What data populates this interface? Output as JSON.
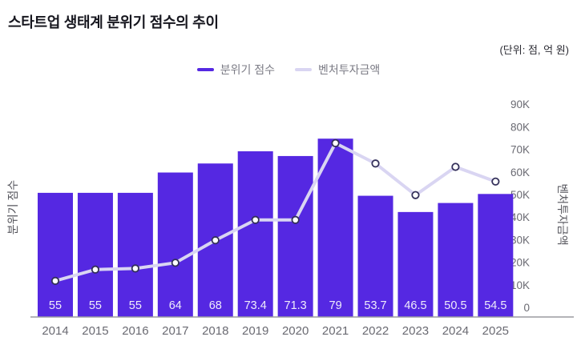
{
  "title": "스타트업 생태계 분위기 점수의 추이",
  "unit_note": "(단위: 점, 억 원)",
  "legend": [
    {
      "label": "분위기 점수",
      "swatch_color": "#5528e2"
    },
    {
      "label": "벤처투자금액",
      "swatch_color": "#d9d5f2"
    }
  ],
  "colors": {
    "bar": "#5528e2",
    "line": "#d9d5f2",
    "marker_fill": "#ffffff",
    "marker_stroke": "#34305a",
    "axis_line": "#9b9ba1",
    "tick_label": "#6a6a72",
    "category_label": "#6a6a72",
    "bar_label": "#efecfb",
    "axis_title": "#55555c",
    "title_text": "#17171f",
    "unit_text": "#2b2b33",
    "legend_text": "#7c7c86"
  },
  "chart_data": {
    "type": "bar",
    "subtype": "bar-line-combo",
    "title": "스타트업 생태계 분위기 점수의 추이",
    "unit_note": "(단위: 점, 억 원)",
    "categories": [
      "2014",
      "2015",
      "2016",
      "2017",
      "2018",
      "2019",
      "2020",
      "2021",
      "2022",
      "2023",
      "2024",
      "2025"
    ],
    "series": [
      {
        "name": "분위기 점수",
        "render": "bar",
        "axis": "left",
        "unit": "점",
        "values": [
          55,
          55,
          55,
          64,
          68,
          73.4,
          71.3,
          79,
          53.7,
          46.5,
          50.5,
          54.5
        ],
        "labels": [
          "55",
          "55",
          "55",
          "64",
          "68",
          "73.4",
          "71.3",
          "79",
          "53.7",
          "46.5",
          "50.5",
          "54.5"
        ]
      },
      {
        "name": "벤처투자금액",
        "render": "line",
        "axis": "right",
        "unit": "억 원",
        "values_estimated_from_pixels": true,
        "values": [
          16000,
          21000,
          21500,
          24000,
          34000,
          43000,
          43000,
          77000,
          68000,
          54000,
          66500,
          60000
        ]
      }
    ],
    "left_axis_label": "분위기 점수",
    "right_axis_label": "벤처투자금액",
    "right_axis_ticks": [
      "0",
      "10K",
      "20K",
      "30K",
      "40K",
      "50K",
      "60K",
      "70K",
      "80K",
      "90K"
    ],
    "right_axis_range": [
      0,
      90000
    ],
    "left_axis_range": [
      0,
      90
    ],
    "grid": false,
    "legend_position": "top-center",
    "bar_value_labels_position": "inside-bottom"
  }
}
